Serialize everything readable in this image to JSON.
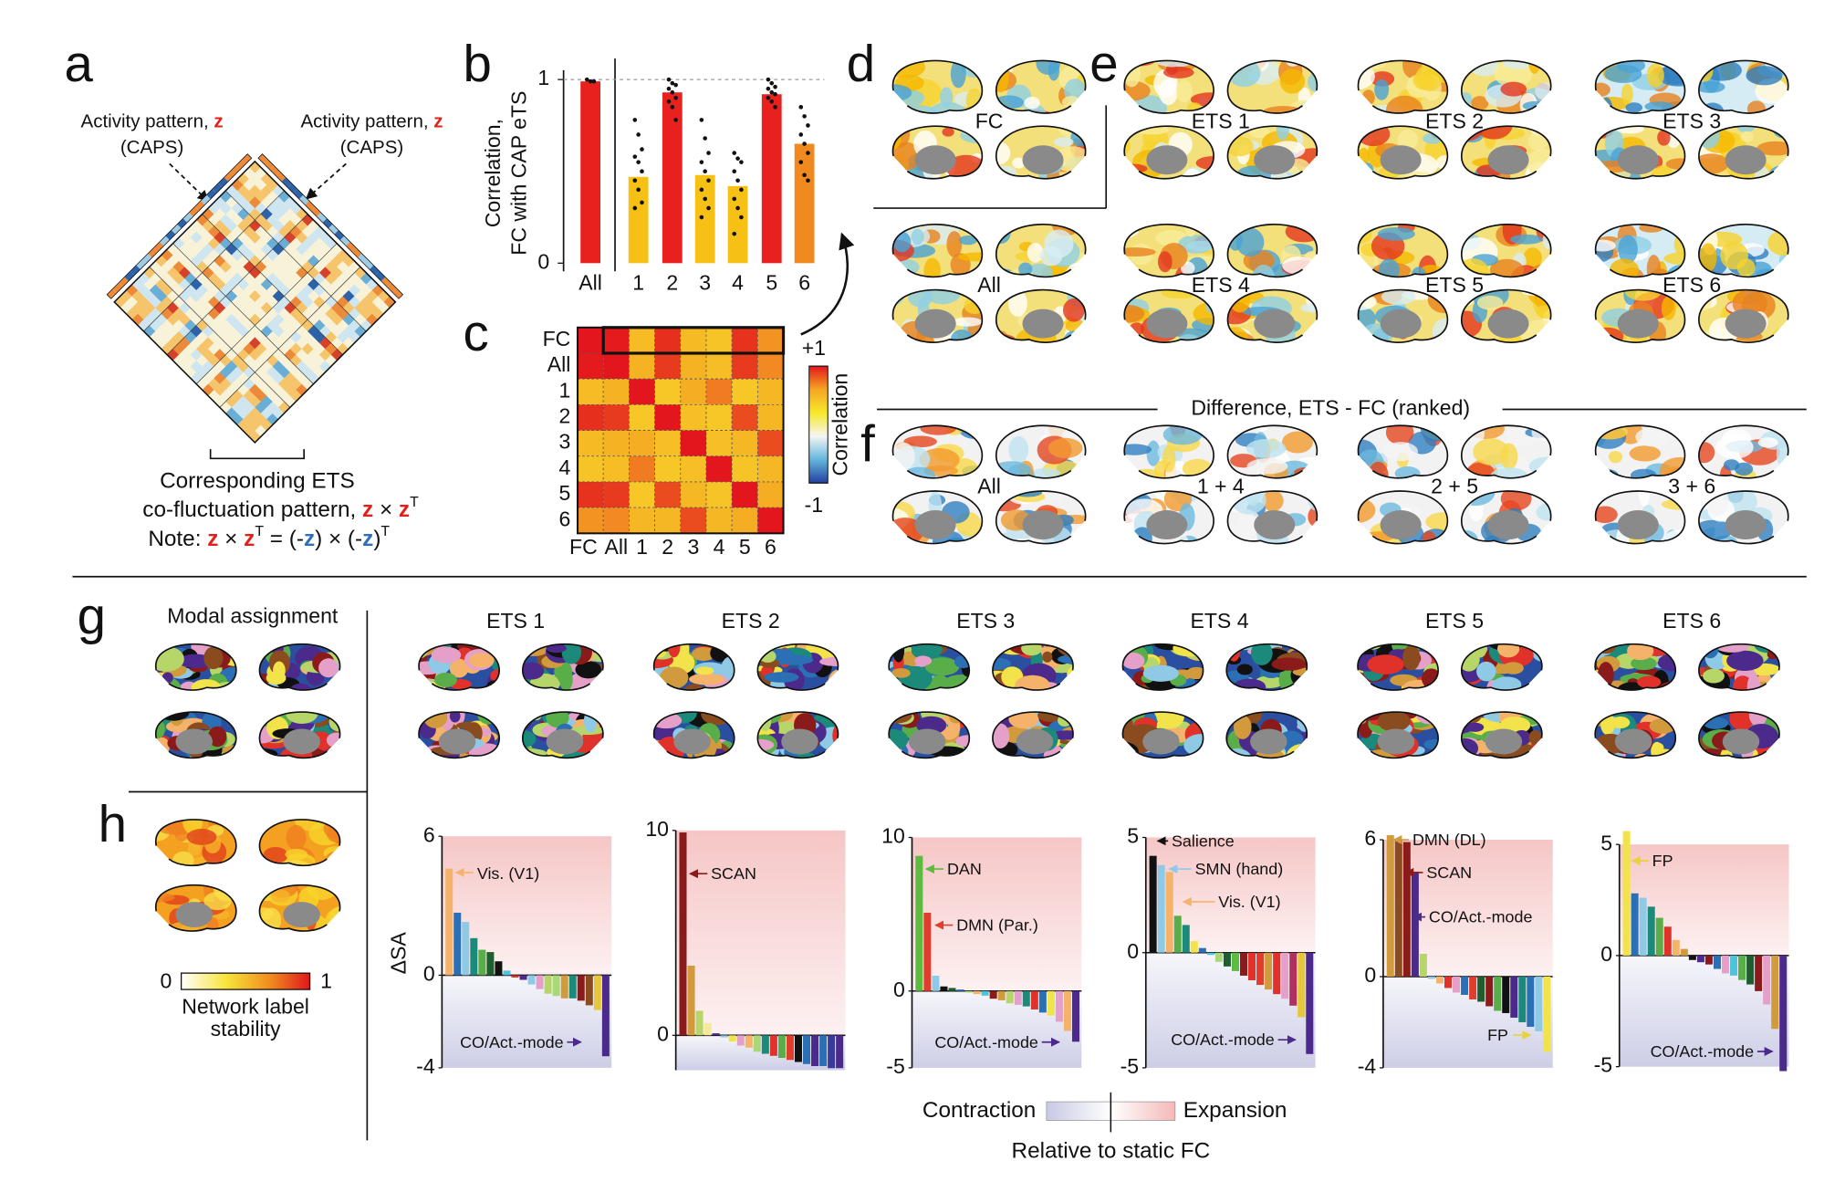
{
  "panels": {
    "a": {
      "letter": "a",
      "inputs": [
        {
          "text": "Activity pattern, ",
          "var": "z",
          "sub": "(CAPS)"
        },
        {
          "text": "Activity pattern, ",
          "var": "z",
          "sub": "(CAPS)"
        }
      ],
      "caption": {
        "line1": "Corresponding ETS",
        "line2": [
          "co-fluctuation pattern, ",
          "z",
          " × ",
          "z",
          "T"
        ],
        "line3": [
          "Note: ",
          "z",
          " × ",
          "z",
          "T",
          " = (-",
          "z",
          ") × (-",
          "z",
          ")",
          "T"
        ]
      }
    },
    "b": {
      "letter": "b"
    },
    "c": {
      "letter": "c"
    },
    "d": {
      "letter": "d",
      "maps": [
        "FC",
        "All"
      ]
    },
    "e": {
      "letter": "e",
      "maps": [
        "ETS 1",
        "ETS 2",
        "ETS 3",
        "ETS 4",
        "ETS 5",
        "ETS 6"
      ]
    },
    "f": {
      "letter": "f",
      "title": "Difference, ETS - FC (ranked)",
      "maps": [
        "All",
        "1 + 4",
        "2 + 5",
        "3 + 6"
      ]
    },
    "g": {
      "letter": "g",
      "title": "Modal assignment",
      "maps": [
        "ETS 1",
        "ETS 2",
        "ETS 3",
        "ETS 4",
        "ETS 5",
        "ETS 6"
      ]
    },
    "h": {
      "letter": "h",
      "colorbar": {
        "ticks": [
          0,
          1
        ],
        "label": [
          "Network label",
          "stability"
        ]
      },
      "legend": {
        "low": "Contraction",
        "high": "Expansion",
        "note": "Relative to static FC"
      }
    }
  },
  "chart_data": [
    {
      "type": "bar",
      "ylabel": [
        "Correlation,",
        "FC with CAP eTS"
      ],
      "categories": [
        "All",
        "1",
        "2",
        "3",
        "4",
        "5",
        "6"
      ],
      "values": [
        0.99,
        0.47,
        0.93,
        0.48,
        0.42,
        0.92,
        0.65
      ],
      "colors": [
        "#e8211f",
        "#f6c014",
        "#e8211f",
        "#f6c014",
        "#f6c014",
        "#e8211f",
        "#f08a1e"
      ],
      "points": [
        [
          1,
          0.99,
          0.99
        ],
        [
          0.78,
          0.7,
          0.62,
          0.58,
          0.55,
          0.5,
          0.45,
          0.4,
          0.33,
          0.3
        ],
        [
          1,
          0.98,
          0.97,
          0.95,
          0.93,
          0.9,
          0.88,
          0.85,
          0.78
        ],
        [
          0.78,
          0.68,
          0.6,
          0.55,
          0.5,
          0.45,
          0.4,
          0.35,
          0.3,
          0.25
        ],
        [
          0.6,
          0.57,
          0.55,
          0.5,
          0.45,
          0.4,
          0.35,
          0.3,
          0.25,
          0.16
        ],
        [
          1,
          0.98,
          0.96,
          0.95,
          0.93,
          0.92,
          0.9,
          0.88,
          0.85
        ],
        [
          0.85,
          0.8,
          0.75,
          0.7,
          0.65,
          0.6,
          0.55,
          0.48,
          0.45
        ]
      ],
      "ylim": [
        0,
        1
      ],
      "yticks": [
        0,
        1
      ]
    },
    {
      "type": "heatmap",
      "categories": [
        "FC",
        "All",
        "1",
        "2",
        "3",
        "4",
        "5",
        "6"
      ],
      "values": [
        [
          1,
          0.99,
          0.47,
          0.93,
          0.48,
          0.42,
          0.92,
          0.65
        ],
        [
          0.99,
          1,
          0.52,
          0.9,
          0.52,
          0.46,
          0.9,
          0.68
        ],
        [
          0.47,
          0.52,
          1,
          0.4,
          0.55,
          0.72,
          0.4,
          0.5
        ],
        [
          0.93,
          0.9,
          0.4,
          1,
          0.45,
          0.4,
          0.85,
          0.5
        ],
        [
          0.48,
          0.52,
          0.55,
          0.45,
          1,
          0.45,
          0.5,
          0.85
        ],
        [
          0.42,
          0.46,
          0.72,
          0.4,
          0.45,
          1,
          0.42,
          0.5
        ],
        [
          0.92,
          0.9,
          0.4,
          0.85,
          0.5,
          0.42,
          1,
          0.55
        ],
        [
          0.65,
          0.68,
          0.5,
          0.5,
          0.85,
          0.5,
          0.55,
          1
        ]
      ],
      "zlim": [
        -1,
        1
      ],
      "zticks": [
        {
          "value": 1,
          "label": "+1"
        },
        -1
      ],
      "colorbar_label": "Correlation",
      "colormap": [
        "#2140a0",
        "#63b5dc",
        "#f5f5f5",
        "#f7e82a",
        "#f5a623",
        "#e4161d"
      ]
    },
    {
      "type": "bar",
      "ylabel": "ΔSA",
      "ylim": [
        -4,
        6
      ],
      "yticks": [
        -4,
        0,
        6
      ],
      "values": [
        4.6,
        2.7,
        2.3,
        1.6,
        1.1,
        1.0,
        0.6,
        0.2,
        -0.1,
        -0.2,
        -0.4,
        -0.6,
        -0.8,
        -0.9,
        -1.0,
        -1.0,
        -1.1,
        -1.3,
        -1.5,
        -3.5
      ],
      "colors": [
        "#f5b26b",
        "#2b6fb5",
        "#8ecae6",
        "#1b8a7a",
        "#5aae4a",
        "#1e5e2e",
        "#111111",
        "#4fc3d9",
        "#e0322a",
        "#4b2a8c",
        "#8ecae6",
        "#e4a0c8",
        "#b7d66a",
        "#a8d87a",
        "#d19a3c",
        "#1b8a7a",
        "#8b1a1a",
        "#8a4b1f",
        "#e8c63a",
        "#4b2a8c"
      ],
      "annotations": [
        {
          "text": "Vis. (V1)",
          "color": "#f5b26b"
        },
        {
          "text": "CO/Act.-mode",
          "color": "#4b2a8c"
        }
      ]
    },
    {
      "type": "bar",
      "ylim": [
        -1.7,
        10
      ],
      "yticks": [
        0,
        10
      ],
      "values": [
        9.9,
        3.4,
        1.2,
        0.6,
        0.1,
        -0.1,
        -0.3,
        -0.5,
        -0.6,
        -0.8,
        -0.9,
        -1.0,
        -1.1,
        -1.2,
        -1.3,
        -1.4,
        -1.5,
        -1.5,
        -1.6,
        -1.6
      ],
      "colors": [
        "#8b1a1a",
        "#d19a3c",
        "#b7d66a",
        "#f5e9a0",
        "#4b2a8c",
        "#8ecae6",
        "#f3e34a",
        "#e4a0c8",
        "#f5b26b",
        "#a8d87a",
        "#1b8a7a",
        "#e0322a",
        "#5aae4a",
        "#e23c2c",
        "#111111",
        "#2b6fb5",
        "#4b2a8c",
        "#2b6fb5",
        "#3a3a9a",
        "#4b2a8c"
      ],
      "annotations": [
        {
          "text": "SCAN",
          "color": "#8b1a1a"
        }
      ]
    },
    {
      "type": "bar",
      "ylim": [
        -5,
        10
      ],
      "yticks": [
        -5,
        0,
        10
      ],
      "values": [
        8.8,
        5.1,
        1.0,
        0.3,
        0.2,
        0.1,
        -0.1,
        -0.2,
        -0.3,
        -0.5,
        -0.6,
        -0.8,
        -0.9,
        -1.0,
        -1.2,
        -1.4,
        -1.6,
        -2.0,
        -2.6,
        -3.3
      ],
      "colors": [
        "#5dbb3f",
        "#e23c2c",
        "#8ecae6",
        "#111111",
        "#1e5e2e",
        "#2b6fb5",
        "#a8d87a",
        "#f5b26b",
        "#4fc3d9",
        "#8b1a1a",
        "#d19a3c",
        "#b7d66a",
        "#e4a0c8",
        "#1b8a7a",
        "#e0322a",
        "#2b6fb5",
        "#f3e34a",
        "#e4a0c8",
        "#f5b26b",
        "#4b2a8c"
      ],
      "annotations": [
        {
          "text": "DAN",
          "color": "#5dbb3f"
        },
        {
          "text": "DMN (Par.)",
          "color": "#e23c2c"
        },
        {
          "text": "CO/Act.-mode",
          "color": "#4b2a8c"
        }
      ]
    },
    {
      "type": "bar",
      "ylim": [
        -5,
        5
      ],
      "yticks": [
        -5,
        0,
        5
      ],
      "values": [
        4.2,
        3.8,
        3.5,
        1.6,
        1.2,
        0.5,
        0.2,
        -0.1,
        -0.4,
        -0.6,
        -0.8,
        -1.0,
        -1.2,
        -1.4,
        -1.6,
        -1.8,
        -2.0,
        -2.3,
        -2.8,
        -4.4
      ],
      "colors": [
        "#111111",
        "#8ecae6",
        "#f5b26b",
        "#5aae4a",
        "#1b8a7a",
        "#f3e34a",
        "#2b6fb5",
        "#4fc3d9",
        "#a8d87a",
        "#1e5e2e",
        "#5dbb3f",
        "#8b1a1a",
        "#e0322a",
        "#e23c2c",
        "#d19a3c",
        "#e0322a",
        "#e4a0c8",
        "#b03060",
        "#e8c63a",
        "#4b2a8c"
      ],
      "annotations": [
        {
          "text": "Salience",
          "color": "#111111"
        },
        {
          "text": "SMN (hand)",
          "color": "#8ecae6"
        },
        {
          "text": "Vis. (V1)",
          "color": "#f5b26b"
        },
        {
          "text": "CO/Act.-mode",
          "color": "#4b2a8c"
        }
      ]
    },
    {
      "type": "bar",
      "ylim": [
        -4,
        6
      ],
      "yticks": [
        -4,
        0,
        6
      ],
      "values": [
        6.2,
        6.0,
        5.9,
        4.6,
        1.0,
        -0.1,
        -0.3,
        -0.5,
        -0.7,
        -0.8,
        -1.0,
        -1.1,
        -1.3,
        -1.5,
        -1.6,
        -1.8,
        -2.0,
        -2.2,
        -2.4,
        -3.3
      ],
      "colors": [
        "#d19a3c",
        "#8a4b1f",
        "#8b1a1a",
        "#4b2a8c",
        "#b7d66a",
        "#8ecae6",
        "#f5b26b",
        "#e0322a",
        "#e4a0c8",
        "#2b6fb5",
        "#e23c2c",
        "#1e5e2e",
        "#8b1a1a",
        "#5aae4a",
        "#111111",
        "#4b2a8c",
        "#1b8a7a",
        "#2b6fb5",
        "#8ecae6",
        "#f3e34a"
      ],
      "annotations": [
        {
          "text": "DMN (DL)",
          "color": "#d19a3c"
        },
        {
          "text": "SCAN",
          "color": "#8b1a1a"
        },
        {
          "text": "CO/Act.-mode",
          "color": "#4b2a8c"
        },
        {
          "text": "FP",
          "color": "#e8d23a"
        }
      ]
    },
    {
      "type": "bar",
      "ylim": [
        -5,
        5
      ],
      "yticks": [
        -5,
        0,
        5
      ],
      "values": [
        5.6,
        2.8,
        2.6,
        2.2,
        1.7,
        1.3,
        0.7,
        0.3,
        -0.2,
        -0.3,
        -0.4,
        -0.6,
        -0.8,
        -0.9,
        -1.1,
        -1.3,
        -1.6,
        -2.2,
        -3.3,
        -5.2
      ],
      "colors": [
        "#f3e34a",
        "#2b6fb5",
        "#8ecae6",
        "#1b8a7a",
        "#5aae4a",
        "#e0322a",
        "#f5b26b",
        "#d19a3c",
        "#111111",
        "#4b2a8c",
        "#8b1a1a",
        "#2b6fb5",
        "#e4a0c8",
        "#4fc3d9",
        "#5aae4a",
        "#1e5e2e",
        "#8b1a1a",
        "#e4a0c8",
        "#d19a3c",
        "#4b2a8c"
      ],
      "annotations": [
        {
          "text": "FP",
          "color": "#e8d23a"
        },
        {
          "text": "CO/Act.-mode",
          "color": "#4b2a8c"
        }
      ]
    }
  ]
}
